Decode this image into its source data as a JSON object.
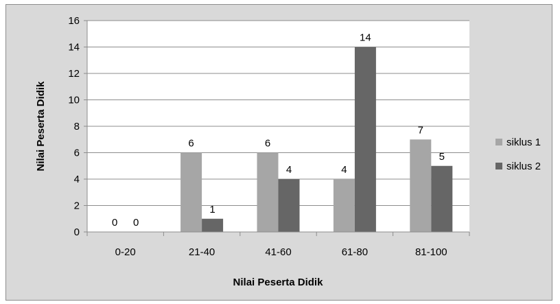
{
  "chart_data": {
    "type": "bar",
    "xlabel": "Nilai Peserta Didik",
    "ylabel": "Nilai Peserta Didik",
    "categories": [
      "0-20",
      "21-40",
      "41-60",
      "61-80",
      "81-100"
    ],
    "series": [
      {
        "name": "siklus 1",
        "values": [
          0,
          6,
          6,
          4,
          7
        ],
        "color": "#a6a6a6"
      },
      {
        "name": "siklus 2",
        "values": [
          0,
          1,
          4,
          14,
          5
        ],
        "color": "#666666"
      }
    ],
    "ylim": [
      0,
      16
    ],
    "yticks": [
      "0",
      "2",
      "4",
      "6",
      "8",
      "10",
      "12",
      "14",
      "16"
    ],
    "grid": true,
    "legend_position": "right",
    "colors": {
      "plot_background": "#ffffff",
      "chart_background": "#d9d9d9",
      "grid": "#8c8c8c"
    }
  }
}
